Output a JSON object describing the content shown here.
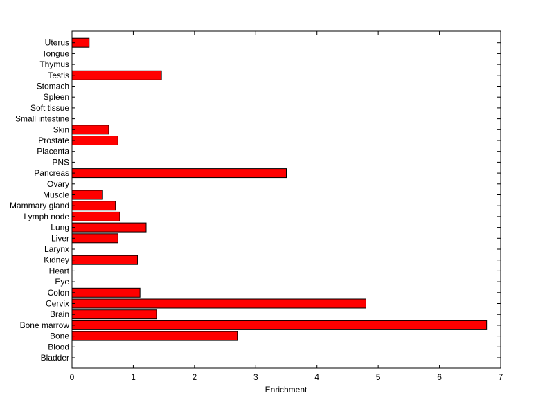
{
  "chart_data": {
    "type": "bar",
    "orientation": "horizontal",
    "categories": [
      "Bladder",
      "Blood",
      "Bone",
      "Bone marrow",
      "Brain",
      "Cervix",
      "Colon",
      "Eye",
      "Heart",
      "Kidney",
      "Larynx",
      "Liver",
      "Lung",
      "Lymph node",
      "Mammary gland",
      "Muscle",
      "Ovary",
      "Pancreas",
      "PNS",
      "Placenta",
      "Prostate",
      "Skin",
      "Small intestine",
      "Soft tissue",
      "Spleen",
      "Stomach",
      "Testis",
      "Thymus",
      "Tongue",
      "Uterus"
    ],
    "values": [
      0,
      0,
      2.7,
      6.77,
      1.38,
      4.8,
      1.11,
      0,
      0,
      1.07,
      0,
      0.75,
      1.21,
      0.78,
      0.71,
      0.5,
      0,
      3.5,
      0,
      0,
      0.75,
      0.6,
      0,
      0,
      0,
      0,
      1.46,
      0,
      0,
      0.28
    ],
    "xlabel": "Enrichment",
    "ylabel": "",
    "title": "",
    "xlim": [
      0,
      7
    ],
    "xticks": [
      "0",
      "1",
      "2",
      "3",
      "4",
      "5",
      "6",
      "7"
    ],
    "grid": false,
    "legend": "none",
    "colors": {
      "bar_fill": "#ff0000",
      "bar_stroke": "#000000",
      "axis": "#000000",
      "background": "#ffffff"
    }
  }
}
